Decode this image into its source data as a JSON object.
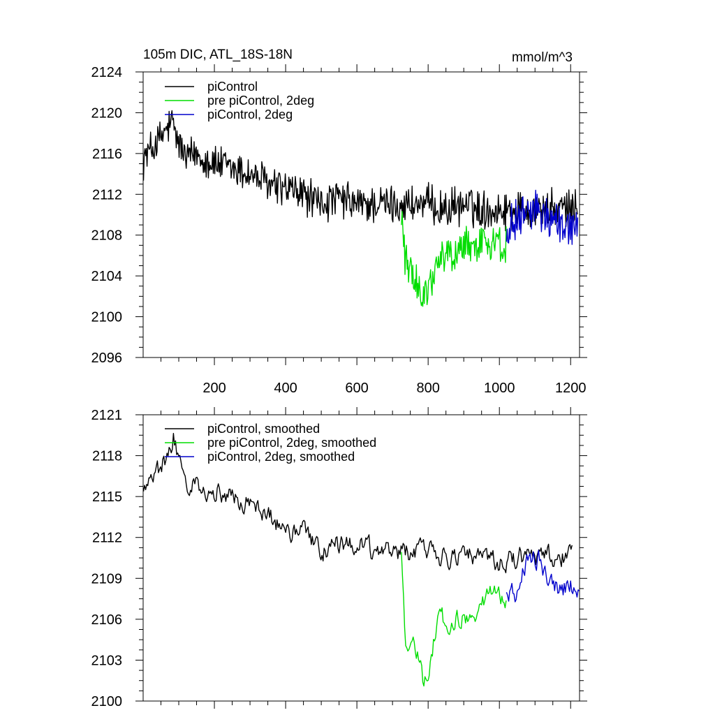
{
  "figure": {
    "title": "105m DIC, ATL_18S-18N",
    "units": "mmol/m^3"
  },
  "chart_data": [
    {
      "type": "line",
      "title": "105m DIC, ATL_18S-18N",
      "units": "mmol/m^3",
      "xlim": [
        0,
        1225
      ],
      "ylim": [
        2096,
        2124
      ],
      "x_ticks": [
        200,
        400,
        600,
        800,
        1000,
        1200
      ],
      "x_tick_labels": [
        "200",
        "400",
        "600",
        "800",
        "1000",
        "1200"
      ],
      "y_ticks": [
        2096,
        2100,
        2104,
        2108,
        2112,
        2116,
        2120,
        2124
      ],
      "y_tick_labels": [
        "2096",
        "2100",
        "2104",
        "2108",
        "2112",
        "2116",
        "2120",
        "2124"
      ],
      "legend_position": "top-left",
      "grid": false,
      "series": [
        {
          "name": "piControl",
          "color": "#000000",
          "x_range": [
            1,
            1220
          ],
          "points": [
            [
              1,
              2115.5
            ],
            [
              50,
              2117.5
            ],
            [
              80,
              2119
            ],
            [
              100,
              2117
            ],
            [
              120,
              2115.5
            ],
            [
              150,
              2116
            ],
            [
              200,
              2115
            ],
            [
              250,
              2114.5
            ],
            [
              300,
              2114
            ],
            [
              350,
              2113
            ],
            [
              400,
              2112.5
            ],
            [
              450,
              2112
            ],
            [
              500,
              2111
            ],
            [
              550,
              2111.5
            ],
            [
              600,
              2111
            ],
            [
              650,
              2111
            ],
            [
              700,
              2111
            ],
            [
              750,
              2111
            ],
            [
              800,
              2111
            ],
            [
              850,
              2110.5
            ],
            [
              900,
              2111
            ],
            [
              950,
              2110.5
            ],
            [
              1000,
              2110.5
            ],
            [
              1050,
              2110.5
            ],
            [
              1100,
              2110.5
            ],
            [
              1150,
              2110.5
            ],
            [
              1200,
              2110.5
            ],
            [
              1220,
              2110.5
            ]
          ],
          "noise_amplitude": 1.6
        },
        {
          "name": "pre piControl, 2deg",
          "color": "#00dd00",
          "x_range": [
            725,
            1020
          ],
          "points": [
            [
              725,
              2110
            ],
            [
              735,
              2106
            ],
            [
              760,
              2104
            ],
            [
              780,
              2102.5
            ],
            [
              800,
              2103
            ],
            [
              820,
              2104
            ],
            [
              840,
              2106
            ],
            [
              870,
              2106
            ],
            [
              900,
              2107
            ],
            [
              950,
              2107.5
            ],
            [
              1000,
              2107
            ],
            [
              1020,
              2107
            ]
          ],
          "noise_amplitude": 1.6
        },
        {
          "name": "piControl, 2deg",
          "color": "#0000cc",
          "x_range": [
            1020,
            1220
          ],
          "points": [
            [
              1020,
              2108.5
            ],
            [
              1060,
              2110
            ],
            [
              1100,
              2110.5
            ],
            [
              1140,
              2110
            ],
            [
              1180,
              2109
            ],
            [
              1220,
              2109
            ]
          ],
          "noise_amplitude": 1.6
        }
      ]
    },
    {
      "type": "line",
      "xlim": [
        0,
        1225
      ],
      "ylim": [
        2100,
        2121
      ],
      "x_ticks": [
        200,
        400,
        600,
        800,
        1000,
        1200
      ],
      "x_tick_labels": [],
      "y_ticks": [
        2100,
        2103,
        2106,
        2109,
        2112,
        2115,
        2118,
        2121
      ],
      "y_tick_labels": [
        "2100",
        "2103",
        "2106",
        "2109",
        "2112",
        "2115",
        "2118",
        "2121"
      ],
      "legend_position": "top-left",
      "grid": false,
      "series": [
        {
          "name": "piControl, smoothed",
          "color": "#000000",
          "x_range": [
            1,
            1205
          ],
          "points": [
            [
              1,
              2115.5
            ],
            [
              30,
              2116.5
            ],
            [
              60,
              2117.5
            ],
            [
              85,
              2119.5
            ],
            [
              105,
              2117
            ],
            [
              120,
              2115.5
            ],
            [
              150,
              2116
            ],
            [
              200,
              2115.5
            ],
            [
              250,
              2115
            ],
            [
              300,
              2114.5
            ],
            [
              350,
              2113.5
            ],
            [
              400,
              2112.5
            ],
            [
              450,
              2112.5
            ],
            [
              500,
              2111
            ],
            [
              550,
              2111.5
            ],
            [
              600,
              2111.5
            ],
            [
              650,
              2111
            ],
            [
              700,
              2111
            ],
            [
              750,
              2111
            ],
            [
              800,
              2111
            ],
            [
              850,
              2110.5
            ],
            [
              900,
              2111
            ],
            [
              950,
              2110.5
            ],
            [
              1000,
              2110
            ],
            [
              1050,
              2110.5
            ],
            [
              1100,
              2110.5
            ],
            [
              1150,
              2110.5
            ],
            [
              1205,
              2110.5
            ]
          ],
          "noise_amplitude": 0.9
        },
        {
          "name": "pre piControl, 2deg, smoothed",
          "color": "#00dd00",
          "x_range": [
            725,
            1020
          ],
          "points": [
            [
              725,
              2111
            ],
            [
              735,
              2105
            ],
            [
              745,
              2104
            ],
            [
              770,
              2103.5
            ],
            [
              785,
              2101.5
            ],
            [
              800,
              2102.5
            ],
            [
              820,
              2105
            ],
            [
              830,
              2107
            ],
            [
              850,
              2105.5
            ],
            [
              880,
              2106
            ],
            [
              920,
              2106
            ],
            [
              950,
              2107.5
            ],
            [
              980,
              2108
            ],
            [
              1020,
              2107
            ]
          ],
          "noise_amplitude": 0.9
        },
        {
          "name": "piControl, 2deg, smoothed",
          "color": "#0000cc",
          "x_range": [
            1020,
            1225
          ],
          "points": [
            [
              1020,
              2108
            ],
            [
              1050,
              2108
            ],
            [
              1080,
              2110.5
            ],
            [
              1110,
              2110.5
            ],
            [
              1140,
              2109
            ],
            [
              1170,
              2108
            ],
            [
              1200,
              2108.5
            ],
            [
              1225,
              2108.5
            ]
          ],
          "noise_amplitude": 0.9
        }
      ]
    }
  ]
}
